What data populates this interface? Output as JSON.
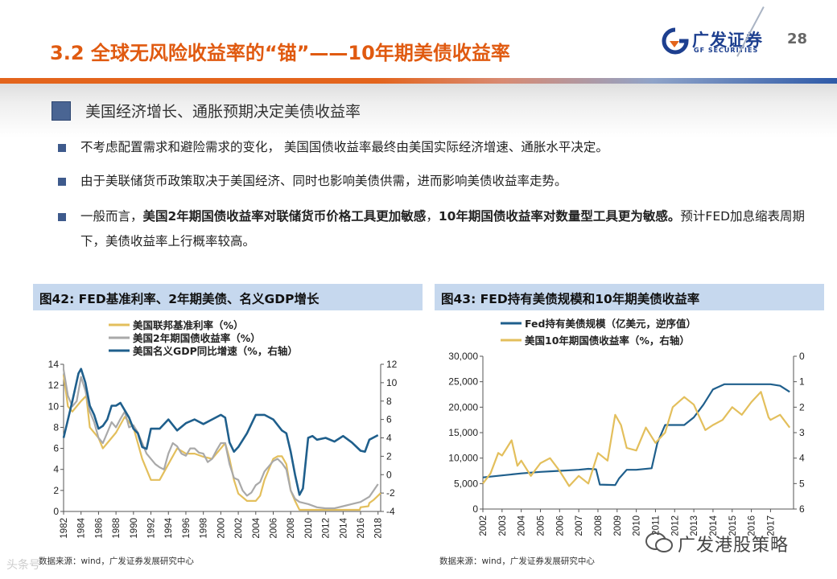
{
  "header": {
    "title": "3.2 全球无风险收益率的“锚”——10年期美债收益率",
    "page_number": "28",
    "logo_cn": "广发证券",
    "logo_en": "GF SECURITIES",
    "brand_color": "#1d3f8f",
    "accent_color": "#e05a10"
  },
  "subheading": "美国经济增长、通胀预期决定美债收益率",
  "bullets": [
    {
      "segments": [
        {
          "text": "不考虑配置需求和避险需求的变化， 美国国债收益率最终由美国实际经济增速、通胀水平决定。",
          "bold": false
        }
      ]
    },
    {
      "segments": [
        {
          "text": " 由于美联储货币政策取决于美国经济、同时也影响美债供需，进而影响美债收益率走势。",
          "bold": false
        }
      ]
    },
    {
      "segments": [
        {
          "text": "一般而言，",
          "bold": false
        },
        {
          "text": "美国2年期国债收益率对联储货币价格工具更加敏感",
          "bold": true
        },
        {
          "text": "，",
          "bold": false
        },
        {
          "text": "10年期国债收益率对数量型工具更为敏感。",
          "bold": true
        },
        {
          "text": "预计FED加息缩表周期下，美债收益率上行概率较高。",
          "bold": false
        }
      ]
    }
  ],
  "chart_data": [
    {
      "type": "line",
      "title": "图42:  FED基准利率、2年期美债、名义GDP增长",
      "source": "数据来源：wind，广发证券发展研究中心",
      "x_ticks": [
        "1982",
        "1984",
        "1986",
        "1988",
        "1990",
        "1992",
        "1994",
        "1996",
        "1998",
        "2000",
        "2002",
        "2004",
        "2006",
        "2008",
        "2010",
        "2012",
        "2014",
        "2016",
        "2018"
      ],
      "xlim": [
        1982,
        2018.3
      ],
      "ylim_left": [
        0,
        14
      ],
      "ylim_right": [
        -4,
        12
      ],
      "yticks_left": [
        "0",
        "2",
        "4",
        "6",
        "8",
        "10",
        "12",
        "14"
      ],
      "yticks_right": [
        "-4",
        "-2",
        "0",
        "2",
        "4",
        "6",
        "8",
        "10",
        "12"
      ],
      "series": [
        {
          "name": "美国联邦基准利率（%）",
          "axis": "left",
          "color": "#e3bf5c",
          "x": [
            1982,
            1982.5,
            1983,
            1984,
            1984.6,
            1985,
            1986,
            1986.5,
            1987,
            1988,
            1989,
            1990,
            1991,
            1992,
            1993,
            1994,
            1995,
            1996,
            1997,
            1998,
            1999,
            2000,
            2000.5,
            2001,
            2001.5,
            2002,
            2003,
            2004,
            2004.5,
            2005,
            2006,
            2006.5,
            2007,
            2007.5,
            2008,
            2008.5,
            2009,
            2010,
            2012,
            2014,
            2015.9,
            2016,
            2016.9,
            2017,
            2017.5,
            2018,
            2018.3
          ],
          "y": [
            13,
            10,
            9.5,
            10.5,
            11,
            8,
            7,
            6,
            6.5,
            7.5,
            9,
            8,
            5,
            3,
            3,
            4.5,
            6,
            5.5,
            5.5,
            5.2,
            5,
            6,
            6.5,
            5,
            3,
            1.7,
            1,
            1,
            1.5,
            3,
            5,
            5.25,
            5.25,
            4.5,
            2,
            1,
            0.15,
            0.15,
            0.15,
            0.15,
            0.15,
            0.4,
            0.5,
            0.8,
            1.1,
            1.5,
            1.75
          ]
        },
        {
          "name": "美国2年期国债收益率（%）",
          "axis": "left",
          "color": "#a9a9a9",
          "x": [
            1982,
            1982.5,
            1983,
            1983.5,
            1984,
            1984.5,
            1985,
            1985.5,
            1986,
            1986.5,
            1987,
            1987.5,
            1988,
            1988.5,
            1989,
            1989.5,
            1990,
            1990.5,
            1991,
            1991.5,
            1992,
            1992.5,
            1993,
            1993.5,
            1994,
            1994.5,
            1995,
            1995.5,
            1996,
            1996.5,
            1997,
            1997.5,
            1998,
            1998.5,
            1999,
            1999.5,
            2000,
            2000.5,
            2001,
            2001.5,
            2002,
            2002.5,
            2003,
            2003.5,
            2004,
            2004.5,
            2005,
            2005.5,
            2006,
            2006.5,
            2007,
            2007.5,
            2008,
            2008.5,
            2009,
            2010,
            2011,
            2012,
            2013,
            2014,
            2015,
            2016,
            2017,
            2018
          ],
          "y": [
            13.5,
            11,
            10,
            10.5,
            12.8,
            11.5,
            9.5,
            8.5,
            7,
            6.5,
            7.5,
            8.5,
            8,
            8.8,
            9.5,
            8,
            8.2,
            7.5,
            6.5,
            5.5,
            5,
            4.5,
            4.2,
            4,
            5.5,
            6.5,
            6.2,
            5.5,
            5.3,
            6,
            6,
            5.6,
            5.5,
            4.7,
            5,
            5.8,
            6.5,
            6.5,
            4.5,
            3.2,
            3,
            2,
            1.5,
            1.8,
            2.5,
            2.8,
            3.8,
            4.3,
            4.8,
            5,
            4.6,
            4,
            2,
            1.2,
            0.9,
            0.7,
            0.4,
            0.3,
            0.3,
            0.5,
            0.7,
            0.9,
            1.4,
            2.6
          ]
        },
        {
          "name": "美国名义GDP同比增速（%，右轴）",
          "axis": "right",
          "color": "#1f5f8c",
          "x": [
            1982,
            1983,
            1983.7,
            1984,
            1984.5,
            1985,
            1985.5,
            1986,
            1986.5,
            1987,
            1987.5,
            1988,
            1988.5,
            1989,
            1989.5,
            1990,
            1990.5,
            1991,
            1991.5,
            1992,
            1993,
            1994,
            1995,
            1996,
            1997,
            1998,
            1999,
            2000,
            2000.5,
            2001,
            2001.5,
            2002,
            2003,
            2004,
            2005,
            2006,
            2007,
            2007.5,
            2008,
            2008.5,
            2009,
            2009.4,
            2010,
            2010.5,
            2011,
            2012,
            2013,
            2014,
            2015,
            2016,
            2016.5,
            2017,
            2018
          ],
          "y": [
            4,
            8,
            11,
            11.5,
            10,
            7.5,
            6.5,
            5,
            5.3,
            6,
            7.5,
            7.5,
            7.8,
            7,
            6.2,
            5,
            4.5,
            3,
            2.8,
            5,
            5,
            6,
            4.8,
            5.6,
            6,
            5.5,
            6,
            6.5,
            6.2,
            3.5,
            2.5,
            3,
            4.5,
            6.5,
            6.5,
            6,
            4.8,
            4.5,
            2.5,
            0,
            -2.2,
            -1.5,
            4,
            4.2,
            3.8,
            4,
            3.6,
            4.2,
            3.5,
            2.6,
            2.5,
            3.8,
            4.3
          ]
        }
      ]
    },
    {
      "type": "line",
      "title": "图43:  FED持有美债规模和10年期美债收益率",
      "source": "数据来源：wind，广发证券发展研究中心",
      "x_ticks": [
        "2002",
        "2003",
        "2004",
        "2005",
        "2006",
        "2007",
        "2008",
        "2009",
        "2010",
        "2011",
        "2012",
        "2013",
        "2014",
        "2015",
        "2016",
        "2017"
      ],
      "xlim": [
        2002,
        2018.2
      ],
      "ylim_left": [
        0,
        30000
      ],
      "ylim_right_inverted": [
        0,
        6
      ],
      "yticks_left": [
        "0",
        "5,000",
        "10,000",
        "15,000",
        "20,000",
        "25,000",
        "30,000"
      ],
      "yticks_right": [
        "0",
        "1",
        "2",
        "3",
        "4",
        "5",
        "6"
      ],
      "series": [
        {
          "name": "Fed持有美债规模（亿美元，逆序值）",
          "axis": "left",
          "color": "#1f5f8c",
          "x": [
            2002,
            2003,
            2004,
            2005,
            2006,
            2007,
            2007.5,
            2007.9,
            2008.1,
            2008.9,
            2009.1,
            2009.5,
            2010,
            2010.8,
            2011.1,
            2011.5,
            2012,
            2012.5,
            2013,
            2013.5,
            2014,
            2014.6,
            2015,
            2016,
            2017,
            2017.5,
            2018
          ],
          "y": [
            6200,
            6600,
            7000,
            7300,
            7500,
            7700,
            7900,
            7800,
            4800,
            4700,
            6000,
            7700,
            7700,
            8000,
            13000,
            16500,
            16500,
            16500,
            18000,
            20500,
            23500,
            24500,
            24500,
            24500,
            24500,
            24200,
            23000
          ]
        },
        {
          "name": "美国10年期国债收益率（%，右轴）",
          "axis": "right",
          "color": "#e3bf5c",
          "x": [
            2002,
            2002.4,
            2002.8,
            2003,
            2003.5,
            2003.8,
            2004,
            2004.5,
            2005,
            2005.5,
            2006,
            2006.5,
            2007,
            2007.5,
            2008,
            2008.5,
            2008.9,
            2009.2,
            2009.5,
            2010,
            2010.5,
            2011,
            2011.5,
            2011.9,
            2012.5,
            2013,
            2013.6,
            2014,
            2014.5,
            2015,
            2015.5,
            2016,
            2016.5,
            2016.9,
            2017,
            2017.5,
            2018
          ],
          "y": [
            5.0,
            4.6,
            3.8,
            3.9,
            3.3,
            4.3,
            4.1,
            4.7,
            4.2,
            4.0,
            4.5,
            5.1,
            4.7,
            5.0,
            3.8,
            4.1,
            2.3,
            2.7,
            3.6,
            3.7,
            2.8,
            3.4,
            3.0,
            2.0,
            1.6,
            1.9,
            2.9,
            2.7,
            2.5,
            2.0,
            2.3,
            1.8,
            1.4,
            2.4,
            2.5,
            2.3,
            2.8
          ]
        }
      ]
    }
  ],
  "watermark": {
    "text": "广发港股策略",
    "corner_text": "头条号"
  }
}
